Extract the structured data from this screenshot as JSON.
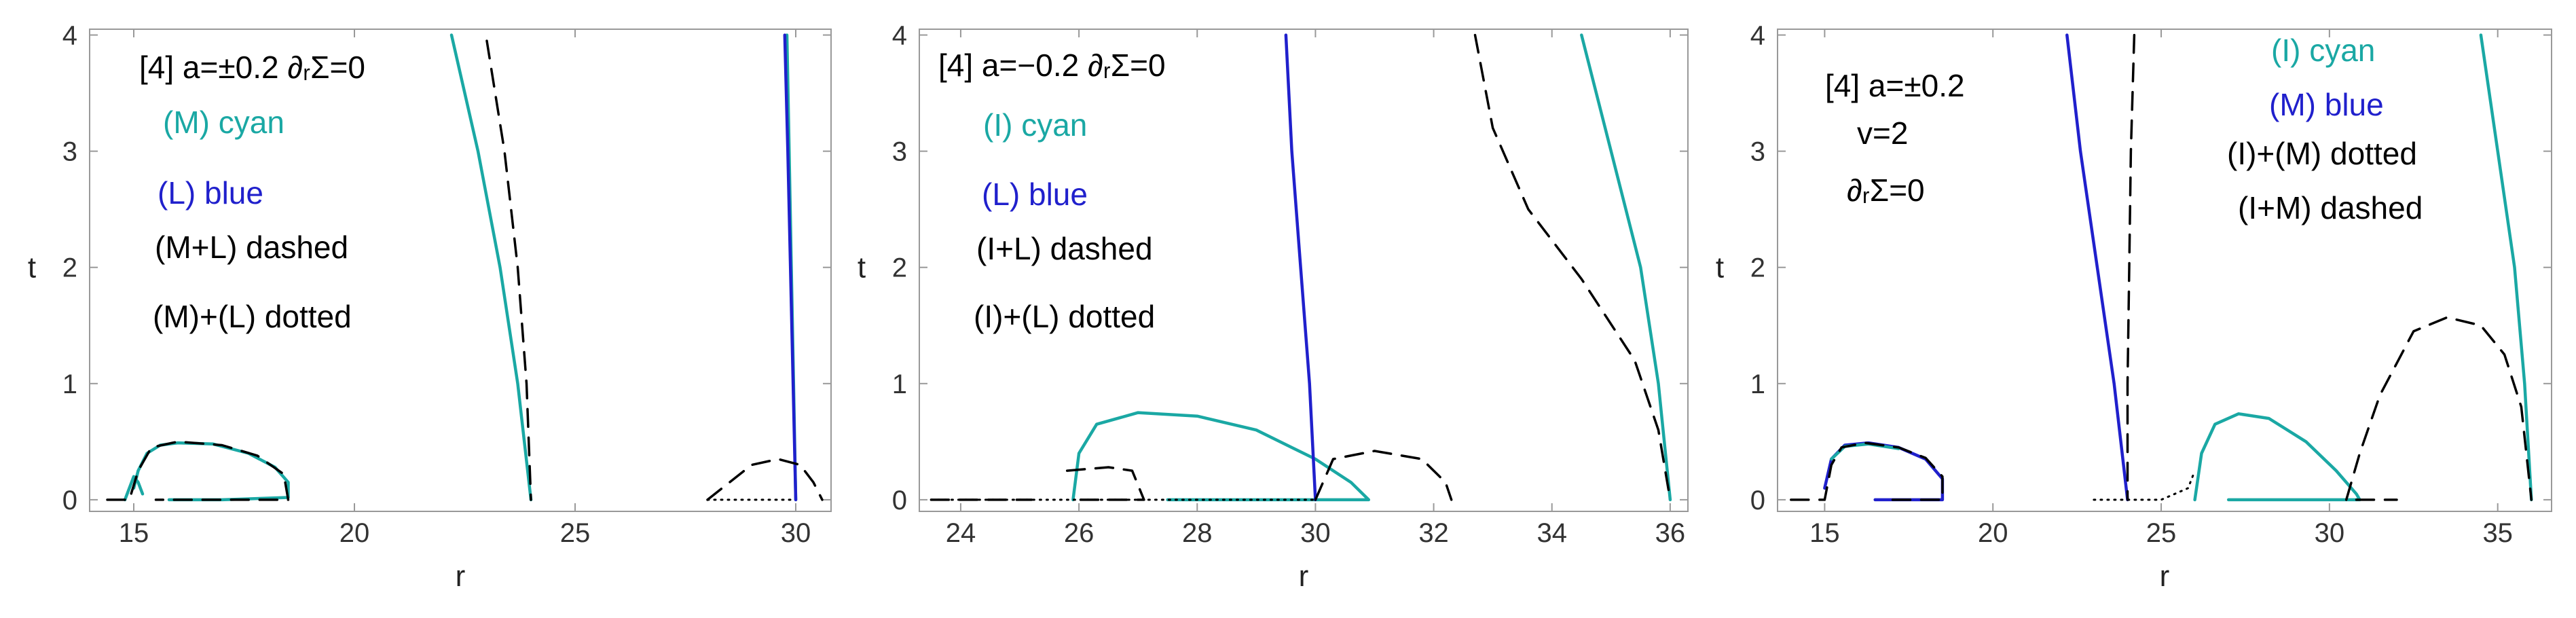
{
  "figure": {
    "panels": 3
  },
  "colors": {
    "cyan": "#1aa8a4",
    "blue": "#2020cc",
    "black": "#000000",
    "frame": "#999999"
  },
  "chart_data": [
    {
      "type": "line",
      "xlabel": "r",
      "ylabel": "t",
      "xlim": [
        14,
        30.8
      ],
      "ylim": [
        -0.1,
        4.05
      ],
      "xticks": [
        15,
        20,
        25,
        30
      ],
      "yticks": [
        0,
        1,
        2,
        3,
        4
      ],
      "legend_position": "upper-left",
      "annotations": [
        {
          "text": "[4] a=±0.2 ∂ᵣΣ=0",
          "color": "black"
        },
        {
          "text": "(M) cyan",
          "color": "cyan"
        },
        {
          "text": "(L) blue",
          "color": "blue"
        },
        {
          "text": "(M+L) dashed",
          "color": "black"
        },
        {
          "text": "(M)+(L) dotted",
          "color": "black"
        }
      ],
      "series": [
        {
          "style": "solid",
          "color": "cyan",
          "points": [
            [
              15.0,
              0.1
            ],
            [
              15.1,
              0.25
            ],
            [
              15.3,
              0.4
            ],
            [
              15.6,
              0.47
            ],
            [
              16.0,
              0.49
            ],
            [
              16.8,
              0.48
            ],
            [
              17.6,
              0.4
            ],
            [
              18.2,
              0.28
            ],
            [
              18.5,
              0.15
            ],
            [
              18.5,
              0.02
            ],
            [
              17.0,
              0.0
            ],
            [
              15.8,
              0.0
            ]
          ]
        },
        {
          "style": "solid",
          "color": "cyan",
          "points": [
            [
              14.8,
              0.0
            ],
            [
              15.0,
              0.2
            ],
            [
              15.1,
              0.15
            ],
            [
              15.2,
              0.05
            ]
          ]
        },
        {
          "style": "solid",
          "color": "cyan",
          "points": [
            [
              22.2,
              4.0
            ],
            [
              22.8,
              3.0
            ],
            [
              23.3,
              2.0
            ],
            [
              23.7,
              1.0
            ],
            [
              24.0,
              0.0
            ]
          ]
        },
        {
          "style": "solid",
          "color": "cyan",
          "points": [
            [
              29.8,
              4.0
            ],
            [
              29.85,
              3.0
            ],
            [
              29.9,
              2.0
            ],
            [
              29.95,
              1.0
            ],
            [
              30.0,
              0.0
            ]
          ]
        },
        {
          "style": "solid",
          "color": "blue",
          "points": [
            [
              29.75,
              4.0
            ],
            [
              29.82,
              3.0
            ],
            [
              29.88,
              2.0
            ],
            [
              29.94,
              1.0
            ],
            [
              30.0,
              0.0
            ]
          ]
        },
        {
          "style": "dashed",
          "color": "black",
          "points": [
            [
              23.0,
              3.95
            ],
            [
              23.4,
              3.0
            ],
            [
              23.7,
              2.0
            ],
            [
              23.9,
              1.0
            ],
            [
              24.0,
              0.0
            ]
          ]
        },
        {
          "style": "dashed",
          "color": "black",
          "points": [
            [
              14.4,
              0.0
            ],
            [
              14.9,
              0.0
            ],
            [
              15.1,
              0.25
            ],
            [
              15.4,
              0.45
            ],
            [
              16.0,
              0.5
            ],
            [
              17.0,
              0.47
            ],
            [
              17.8,
              0.38
            ],
            [
              18.4,
              0.22
            ],
            [
              18.5,
              0.0
            ],
            [
              17.0,
              0.0
            ],
            [
              15.5,
              0.0
            ]
          ]
        },
        {
          "style": "dashed",
          "color": "black",
          "points": [
            [
              28.0,
              0.0
            ],
            [
              28.5,
              0.15
            ],
            [
              29.0,
              0.3
            ],
            [
              29.6,
              0.35
            ],
            [
              30.1,
              0.3
            ],
            [
              30.4,
              0.15
            ],
            [
              30.6,
              0.0
            ]
          ]
        },
        {
          "style": "dotted",
          "color": "black",
          "points": [
            [
              28.0,
              0.0
            ],
            [
              30.0,
              0.0
            ]
          ]
        }
      ]
    },
    {
      "type": "line",
      "xlabel": "r",
      "ylabel": "t",
      "xlim": [
        23.3,
        36.3
      ],
      "ylim": [
        -0.1,
        4.05
      ],
      "xticks": [
        24,
        26,
        28,
        30,
        32,
        34,
        36
      ],
      "yticks": [
        0,
        1,
        2,
        3,
        4
      ],
      "legend_position": "upper-left",
      "annotations": [
        {
          "text": "[4] a=−0.2 ∂ᵣΣ=0",
          "color": "black"
        },
        {
          "text": "(I) cyan",
          "color": "cyan"
        },
        {
          "text": "(L) blue",
          "color": "blue"
        },
        {
          "text": "(I+L) dashed",
          "color": "black"
        },
        {
          "text": "(I)+(L) dotted",
          "color": "black"
        }
      ],
      "series": [
        {
          "style": "solid",
          "color": "cyan",
          "points": [
            [
              25.9,
              0.0
            ],
            [
              26.0,
              0.4
            ],
            [
              26.3,
              0.65
            ],
            [
              27.0,
              0.75
            ],
            [
              28.0,
              0.72
            ],
            [
              29.0,
              0.6
            ],
            [
              30.0,
              0.35
            ],
            [
              30.6,
              0.15
            ],
            [
              30.9,
              0.0
            ],
            [
              29.5,
              0.0
            ],
            [
              27.5,
              0.0
            ]
          ]
        },
        {
          "style": "solid",
          "color": "cyan",
          "points": [
            [
              34.5,
              4.0
            ],
            [
              35.0,
              3.0
            ],
            [
              35.5,
              2.0
            ],
            [
              35.8,
              1.0
            ],
            [
              36.0,
              0.0
            ]
          ]
        },
        {
          "style": "solid",
          "color": "blue",
          "points": [
            [
              29.5,
              4.0
            ],
            [
              29.6,
              3.0
            ],
            [
              29.75,
              2.0
            ],
            [
              29.9,
              1.0
            ],
            [
              30.0,
              0.0
            ]
          ]
        },
        {
          "style": "dashed",
          "color": "black",
          "points": [
            [
              32.7,
              4.0
            ],
            [
              33.0,
              3.2
            ],
            [
              33.6,
              2.5
            ],
            [
              34.5,
              1.9
            ],
            [
              35.4,
              1.2
            ],
            [
              35.8,
              0.6
            ],
            [
              36.0,
              0.0
            ]
          ]
        },
        {
          "style": "dashed",
          "color": "black",
          "points": [
            [
              30.0,
              0.0
            ],
            [
              30.3,
              0.35
            ],
            [
              31.0,
              0.42
            ],
            [
              31.8,
              0.35
            ],
            [
              32.2,
              0.15
            ],
            [
              32.3,
              0.0
            ]
          ]
        },
        {
          "style": "dashed",
          "color": "black",
          "points": [
            [
              25.8,
              0.25
            ],
            [
              26.5,
              0.28
            ],
            [
              26.9,
              0.25
            ],
            [
              27.1,
              0.0
            ],
            [
              26.5,
              0.0
            ],
            [
              25.9,
              0.0
            ]
          ]
        },
        {
          "style": "dashed",
          "color": "black",
          "points": [
            [
              23.5,
              0.0
            ],
            [
              25.2,
              0.0
            ]
          ]
        },
        {
          "style": "dotted",
          "color": "black",
          "points": [
            [
              23.5,
              0.0
            ],
            [
              26.0,
              0.0
            ],
            [
              30.0,
              0.0
            ]
          ]
        }
      ]
    },
    {
      "type": "line",
      "xlabel": "r",
      "ylabel": "t",
      "xlim": [
        13.6,
        36.6
      ],
      "ylim": [
        -0.1,
        4.05
      ],
      "xticks": [
        15,
        20,
        25,
        30,
        35
      ],
      "yticks": [
        0,
        1,
        2,
        3,
        4
      ],
      "legend_position": "upper-left",
      "annotations": [
        {
          "text": "[4] a=±0.2",
          "color": "black"
        },
        {
          "text": "v=2",
          "color": "black"
        },
        {
          "text": "∂ᵣΣ=0",
          "color": "black"
        },
        {
          "text": "(I) cyan",
          "color": "cyan"
        },
        {
          "text": "(M) blue",
          "color": "blue"
        },
        {
          "text": "(I)+(M) dotted",
          "color": "black"
        },
        {
          "text": "(I+M) dashed",
          "color": "black"
        }
      ],
      "series": [
        {
          "style": "solid",
          "color": "blue",
          "points": [
            [
              15.0,
              0.1
            ],
            [
              15.2,
              0.35
            ],
            [
              15.6,
              0.47
            ],
            [
              16.3,
              0.49
            ],
            [
              17.2,
              0.45
            ],
            [
              18.0,
              0.35
            ],
            [
              18.5,
              0.18
            ],
            [
              18.5,
              0.0
            ],
            [
              16.5,
              0.0
            ]
          ]
        },
        {
          "style": "solid",
          "color": "cyan",
          "points": [
            [
              15.2,
              0.35
            ],
            [
              15.6,
              0.46
            ],
            [
              16.3,
              0.48
            ],
            [
              17.2,
              0.44
            ]
          ]
        },
        {
          "style": "solid",
          "color": "blue",
          "points": [
            [
              22.2,
              4.0
            ],
            [
              22.6,
              3.0
            ],
            [
              23.1,
              2.0
            ],
            [
              23.6,
              1.0
            ],
            [
              24.0,
              0.0
            ]
          ]
        },
        {
          "style": "solid",
          "color": "cyan",
          "points": [
            [
              26.0,
              0.0
            ],
            [
              26.2,
              0.4
            ],
            [
              26.6,
              0.65
            ],
            [
              27.3,
              0.74
            ],
            [
              28.2,
              0.7
            ],
            [
              29.3,
              0.5
            ],
            [
              30.2,
              0.25
            ],
            [
              30.8,
              0.05
            ],
            [
              30.9,
              0.0
            ],
            [
              28.0,
              0.0
            ],
            [
              27.0,
              0.0
            ]
          ]
        },
        {
          "style": "solid",
          "color": "cyan",
          "points": [
            [
              34.5,
              4.0
            ],
            [
              35.0,
              3.0
            ],
            [
              35.5,
              2.0
            ],
            [
              35.8,
              1.0
            ],
            [
              36.0,
              0.0
            ]
          ]
        },
        {
          "style": "dashed",
          "color": "black",
          "points": [
            [
              24.2,
              4.0
            ],
            [
              24.1,
              3.0
            ],
            [
              24.05,
              2.0
            ],
            [
              24.0,
              1.0
            ],
            [
              24.0,
              0.0
            ]
          ]
        },
        {
          "style": "dashed",
          "color": "black",
          "points": [
            [
              30.5,
              0.0
            ],
            [
              30.9,
              0.4
            ],
            [
              31.5,
              0.9
            ],
            [
              32.5,
              1.45
            ],
            [
              33.5,
              1.57
            ],
            [
              34.5,
              1.5
            ],
            [
              35.2,
              1.25
            ],
            [
              35.7,
              0.8
            ],
            [
              36.0,
              0.0
            ]
          ]
        },
        {
          "style": "dashed",
          "color": "black",
          "points": [
            [
              14.0,
              0.0
            ],
            [
              15.0,
              0.0
            ],
            [
              15.2,
              0.3
            ],
            [
              15.5,
              0.45
            ],
            [
              16.2,
              0.49
            ],
            [
              17.2,
              0.45
            ],
            [
              18.0,
              0.36
            ],
            [
              18.5,
              0.2
            ],
            [
              18.5,
              0.0
            ],
            [
              17.0,
              0.0
            ]
          ]
        },
        {
          "style": "dashed",
          "color": "black",
          "points": [
            [
              30.8,
              0.0
            ],
            [
              32.0,
              0.0
            ]
          ]
        },
        {
          "style": "dotted",
          "color": "black",
          "points": [
            [
              23.0,
              0.0
            ],
            [
              25.0,
              0.0
            ],
            [
              25.8,
              0.1
            ],
            [
              26.0,
              0.25
            ]
          ]
        }
      ]
    }
  ]
}
